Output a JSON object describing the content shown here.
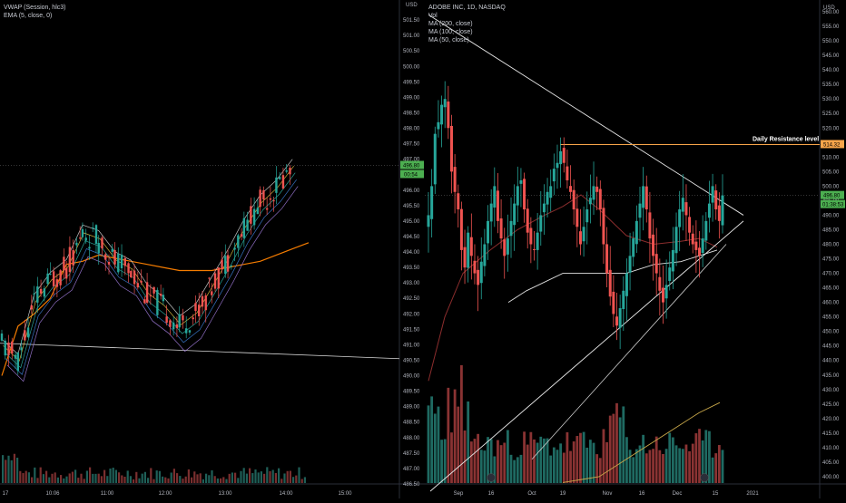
{
  "left_panel": {
    "legend": [
      "VWAP (Session, hlc3)",
      "EMA (5, close, 0)"
    ],
    "price_label": "496.80",
    "countdown": "00:54",
    "y_ticks": [
      "501.50",
      "501.00",
      "500.50",
      "500.00",
      "499.50",
      "499.00",
      "498.50",
      "498.00",
      "497.50",
      "497.00",
      "496.50",
      "496.00",
      "495.50",
      "495.00",
      "494.50",
      "494.00",
      "493.50",
      "493.00",
      "492.50",
      "492.00",
      "491.50",
      "491.00",
      "490.50",
      "490.00",
      "489.50",
      "489.00",
      "488.50",
      "488.00",
      "487.50",
      "487.00",
      "486.50"
    ],
    "x_ticks": [
      "17",
      "10:06",
      "11:00",
      "12:00",
      "13:00",
      "14:00",
      "15:00"
    ],
    "ylim": [
      486.5,
      502.0
    ]
  },
  "right_panel": {
    "currency": "USD",
    "legend": [
      "ADOBE INC, 1D, NASDAQ",
      "Vol",
      "MA (200, close)",
      "MA (100, close)",
      "MA (50, close)"
    ],
    "price_label": "496.80",
    "countdown": "01:38:53",
    "resistance_label": "514.32",
    "annotation": "Daily Resistance level",
    "y_ticks": [
      "560.00",
      "555.00",
      "550.00",
      "545.00",
      "540.00",
      "535.00",
      "530.00",
      "525.00",
      "520.00",
      "515.00",
      "510.00",
      "505.00",
      "500.00",
      "495.00",
      "490.00",
      "485.00",
      "480.00",
      "475.00",
      "470.00",
      "465.00",
      "460.00",
      "455.00",
      "450.00",
      "445.00",
      "440.00",
      "435.00",
      "430.00",
      "425.00",
      "420.00",
      "415.00",
      "410.00",
      "405.00",
      "400.00"
    ],
    "x_ticks": [
      "Sep",
      "16",
      "Oct",
      "19",
      "Nov",
      "16",
      "Dec",
      "15",
      "2021"
    ],
    "ylim": [
      397.5,
      562.5
    ]
  },
  "colors": {
    "up": "#26a69a",
    "down": "#ef5350",
    "price_label": "#4caf50",
    "resistance": "#f7a54a",
    "ma200": "#e8e8e8",
    "ma100": "#ffffff",
    "ma50": "#d6a84a"
  },
  "chart_data": [
    {
      "type": "line",
      "panel": "left",
      "ylim": [
        486.5,
        502.0
      ],
      "series": [
        {
          "name": "VWAP (Session, hlc3)",
          "values": [
            490.0,
            491.6,
            492.0,
            492.5,
            493.6,
            493.7,
            493.9,
            493.8,
            493.7,
            493.6,
            493.5,
            493.4,
            493.4,
            493.4,
            493.5,
            493.6,
            493.7,
            493.9,
            494.1,
            494.3
          ]
        },
        {
          "name": "EMA (5, close, 0)",
          "values": [
            491.0,
            490.5,
            492.4,
            493.1,
            493.5,
            494.6,
            494.4,
            493.7,
            493.4,
            492.6,
            492.2,
            491.6,
            492.0,
            492.9,
            493.8,
            494.8,
            495.6,
            496.1,
            496.8
          ]
        }
      ],
      "price": 496.8
    },
    {
      "type": "candlestick",
      "panel": "right",
      "ylim": [
        397.5,
        562.5
      ],
      "close": [
        490,
        500,
        518,
        522,
        528,
        530,
        520,
        505,
        498,
        492,
        478,
        472,
        484,
        476,
        470,
        466,
        474,
        480,
        488,
        494,
        500,
        488,
        482,
        476,
        482,
        488,
        494,
        500,
        502,
        492,
        484,
        480,
        478,
        484,
        490,
        494,
        498,
        500,
        506,
        508,
        512,
        508,
        502,
        498,
        492,
        486,
        480,
        486,
        492,
        496,
        500,
        498,
        492,
        480,
        470,
        462,
        456,
        452,
        458,
        464,
        470,
        476,
        482,
        488,
        494,
        500,
        492,
        482,
        476,
        470,
        464,
        460,
        466,
        472,
        478,
        486,
        492,
        496,
        490,
        484,
        480,
        478,
        476,
        482,
        488,
        494,
        500,
        492,
        488,
        496.8
      ],
      "resistance": 514.32,
      "price": 496.8
    }
  ]
}
